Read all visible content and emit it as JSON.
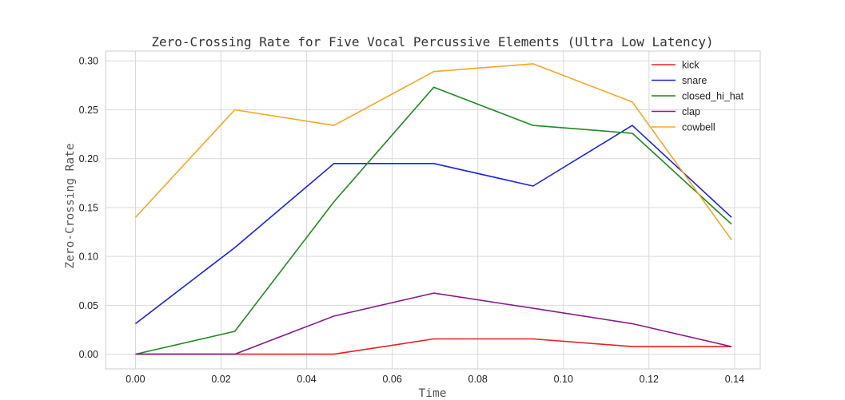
{
  "chart_data": {
    "type": "line",
    "title": "Zero-Crossing Rate for Five Vocal Percussive Elements (Ultra Low Latency)",
    "xlabel": "Time",
    "ylabel": "Zero-Crossing Rate",
    "xlim": [
      -0.007,
      0.146
    ],
    "ylim": [
      -0.015,
      0.31
    ],
    "xticks": [
      0.0,
      0.02,
      0.04,
      0.06,
      0.08,
      0.1,
      0.12,
      0.14
    ],
    "xtick_labels": [
      "0.00",
      "0.02",
      "0.04",
      "0.06",
      "0.08",
      "0.10",
      "0.12",
      "0.14"
    ],
    "yticks": [
      0.0,
      0.05,
      0.1,
      0.15,
      0.2,
      0.25,
      0.3
    ],
    "ytick_labels": [
      "0.00",
      "0.05",
      "0.10",
      "0.15",
      "0.20",
      "0.25",
      "0.30"
    ],
    "grid": true,
    "legend_position": "top-right",
    "x": [
      0.0,
      0.0232,
      0.0464,
      0.0697,
      0.0929,
      0.1161,
      0.1393
    ],
    "series": [
      {
        "name": "kick",
        "color": "#e8211d",
        "values": [
          0.0,
          0.0,
          0.0,
          0.0156,
          0.0156,
          0.0078,
          0.0078
        ]
      },
      {
        "name": "snare",
        "color": "#1a22e6",
        "values": [
          0.0312,
          0.109,
          0.195,
          0.195,
          0.172,
          0.234,
          0.14
        ]
      },
      {
        "name": "closed_hi_hat",
        "color": "#1f8a1f",
        "values": [
          0.0,
          0.0234,
          0.156,
          0.273,
          0.234,
          0.226,
          0.133
        ]
      },
      {
        "name": "clap",
        "color": "#8a1a8a",
        "values": [
          0.0,
          0.0,
          0.039,
          0.0625,
          0.047,
          0.0312,
          0.0078
        ]
      },
      {
        "name": "cowbell",
        "color": "#f5a623",
        "values": [
          0.14,
          0.25,
          0.234,
          0.289,
          0.297,
          0.258,
          0.117
        ]
      }
    ]
  }
}
